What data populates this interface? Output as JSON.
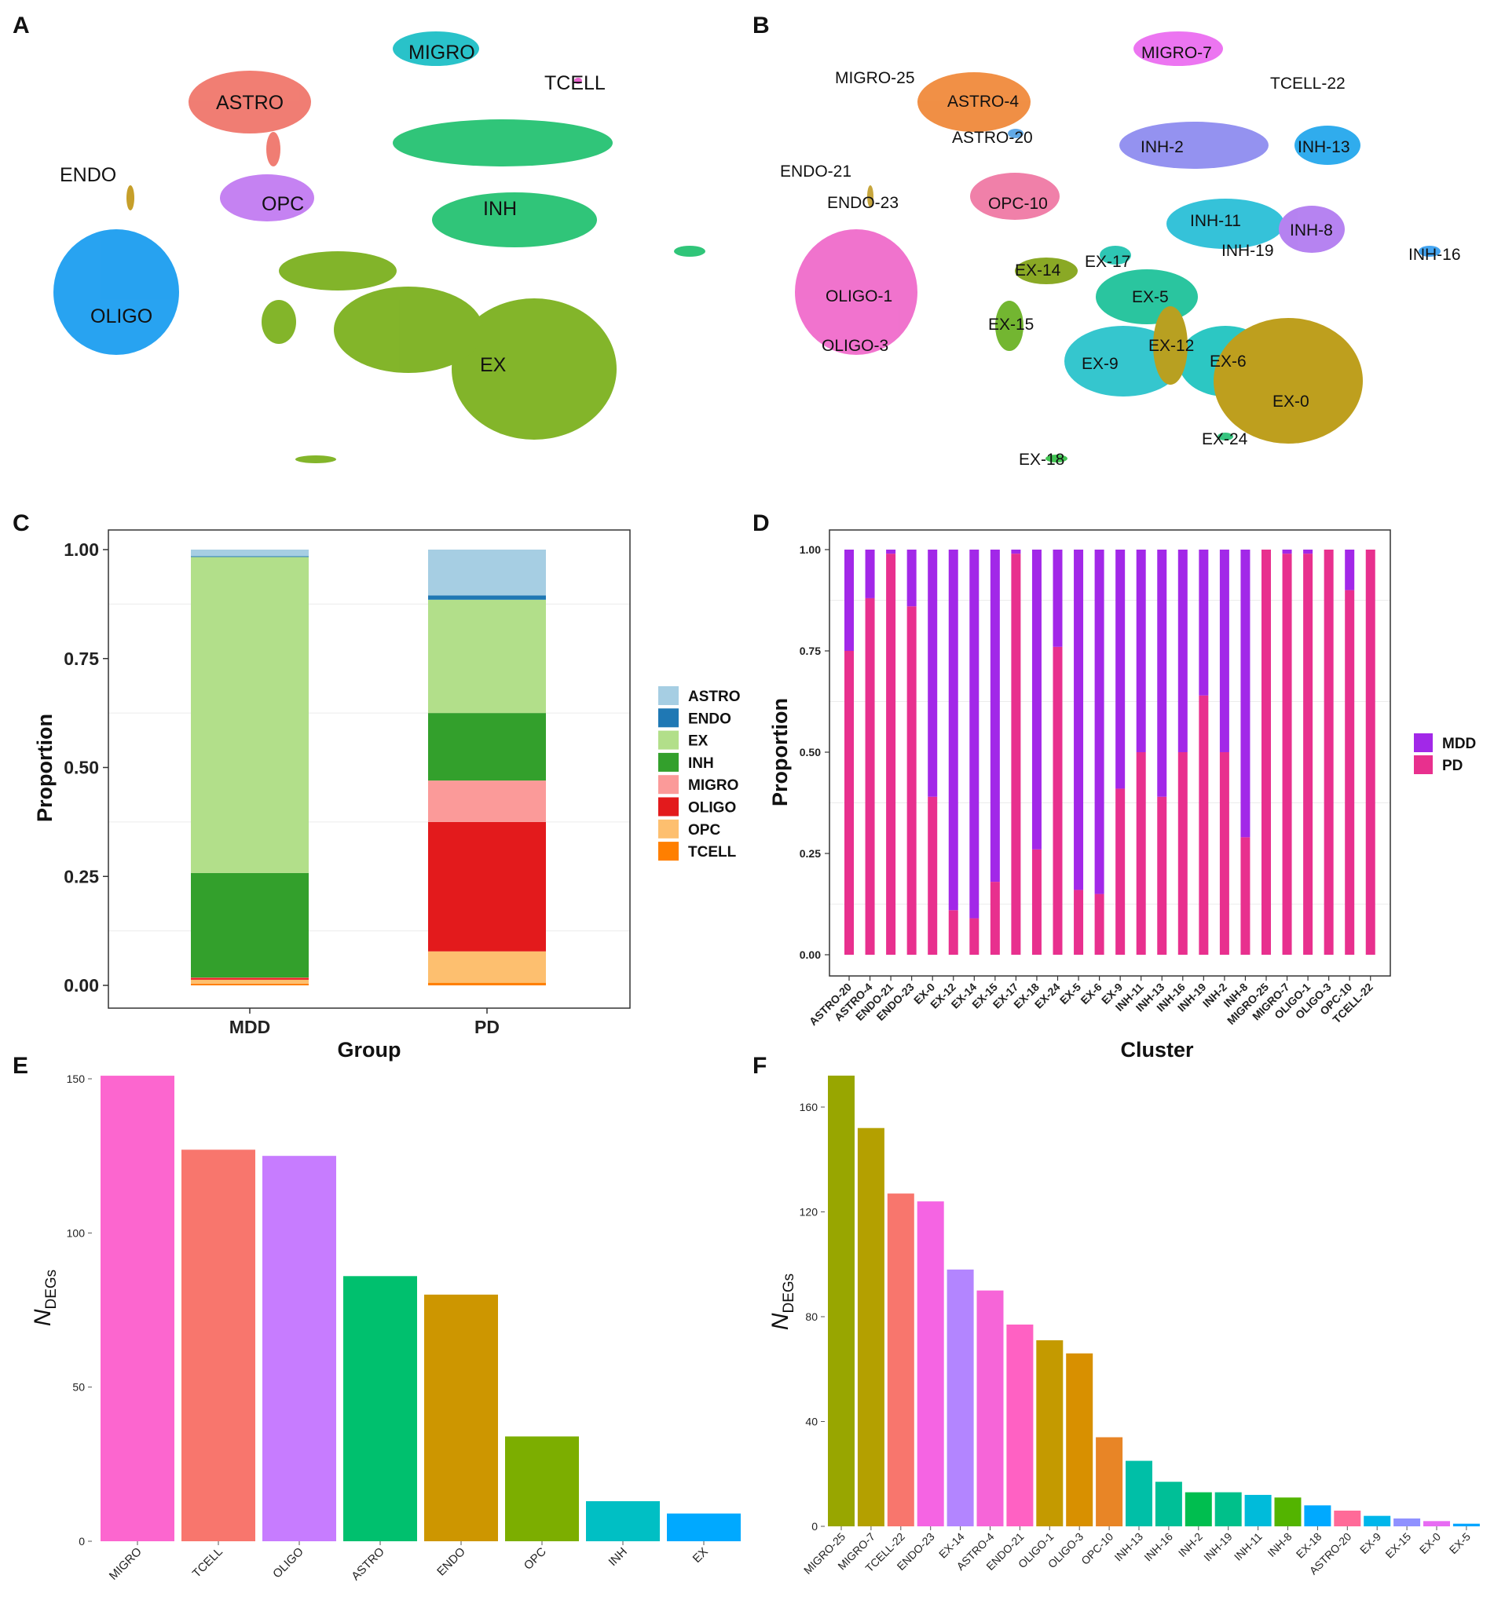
{
  "umap_a": {
    "panel_label": "A",
    "labels": [
      "MIGRO",
      "TCELL",
      "ASTRO",
      "ENDO",
      "OPC",
      "INH",
      "OLIGO",
      "EX"
    ],
    "colors": {
      "MIGRO": "#1ebfc6",
      "TCELL": "#e65cc9",
      "ASTRO": "#f0776c",
      "ENDO": "#c49a1f",
      "OPC": "#c27cf2",
      "INH": "#25c272",
      "OLIGO": "#1c9ef0",
      "EX": "#7cb11f"
    }
  },
  "umap_b": {
    "panel_label": "B",
    "labels": [
      "MIGRO-7",
      "MIGRO-25",
      "TCELL-22",
      "ASTRO-4",
      "ASTRO-20",
      "INH-2",
      "INH-13",
      "ENDO-21",
      "ENDO-23",
      "OPC-10",
      "INH-11",
      "INH-8",
      "INH-19",
      "INH-16",
      "EX-14",
      "EX-17",
      "OLIGO-1",
      "EX-5",
      "EX-15",
      "OLIGO-3",
      "EX-12",
      "EX-6",
      "EX-9",
      "EX-0",
      "EX-24",
      "EX-18"
    ],
    "colors": {
      "MIGRO-7": "#eb6ef0",
      "MIGRO-25": "#b45ce8",
      "TCELL-22": "#f06aa8",
      "ASTRO-4": "#f08a3c",
      "ASTRO-20": "#5aa6e6",
      "INH-2": "#8f8df0",
      "INH-13": "#25a8ec",
      "ENDO-21": "#d9a23a",
      "ENDO-23": "#c4a133",
      "OPC-10": "#f07aa5",
      "INH-11": "#2bbfd8",
      "INH-8": "#b27cf0",
      "INH-19": "#29b7e8",
      "INH-16": "#3aa0f0",
      "EX-14": "#84a51a",
      "EX-17": "#23c4b0",
      "OLIGO-1": "#f06ccb",
      "EX-5": "#1fc29a",
      "EX-15": "#6cb327",
      "OLIGO-3": "#ee5fc0",
      "EX-12": "#b59b16",
      "EX-6": "#21c5c0",
      "EX-9": "#2bc3cc",
      "EX-0": "#bb9a12",
      "EX-24": "#2cc27a",
      "EX-18": "#39c24b"
    }
  },
  "chart_data": [
    {
      "panel_label": "C",
      "type": "bar",
      "stacked": true,
      "title": "",
      "xlabel": "Group",
      "ylabel": "Proportion",
      "categories": [
        "MDD",
        "PD"
      ],
      "ylim": [
        0,
        1
      ],
      "yticks": [
        "0.00",
        "0.25",
        "0.50",
        "0.75",
        "1.00"
      ],
      "series": [
        {
          "name": "ASTRO",
          "color": "#a6cee3",
          "values": [
            0.015,
            0.105
          ]
        },
        {
          "name": "ENDO",
          "color": "#1f78b4",
          "values": [
            0.002,
            0.01
          ]
        },
        {
          "name": "EX",
          "color": "#b2df8a",
          "values": [
            0.725,
            0.26
          ]
        },
        {
          "name": "INH",
          "color": "#33a02c",
          "values": [
            0.24,
            0.155
          ]
        },
        {
          "name": "MIGRO",
          "color": "#fb9a99",
          "values": [
            0.001,
            0.095
          ]
        },
        {
          "name": "OLIGO",
          "color": "#e31a1c",
          "values": [
            0.004,
            0.297
          ]
        },
        {
          "name": "OPC",
          "color": "#fdbf6f",
          "values": [
            0.009,
            0.072
          ]
        },
        {
          "name": "TCELL",
          "color": "#ff7f00",
          "values": [
            0.004,
            0.006
          ]
        }
      ],
      "legend_position": "right"
    },
    {
      "panel_label": "D",
      "type": "bar",
      "stacked": true,
      "title": "",
      "xlabel": "Cluster",
      "ylabel": "Proportion",
      "categories": [
        "ASTRO-20",
        "ASTRO-4",
        "ENDO-21",
        "ENDO-23",
        "EX-0",
        "EX-12",
        "EX-14",
        "EX-15",
        "EX-17",
        "EX-18",
        "EX-24",
        "EX-5",
        "EX-6",
        "EX-9",
        "INH-11",
        "INH-13",
        "INH-16",
        "INH-19",
        "INH-2",
        "INH-8",
        "MIGRO-25",
        "MIGRO-7",
        "OLIGO-1",
        "OLIGO-3",
        "OPC-10",
        "TCELL-22"
      ],
      "ylim": [
        0,
        1
      ],
      "yticks": [
        "0.00",
        "0.25",
        "0.50",
        "0.75",
        "1.00"
      ],
      "series": [
        {
          "name": "PD",
          "color": "#e8308e",
          "values": [
            0.75,
            0.88,
            0.99,
            0.86,
            0.39,
            0.11,
            0.09,
            0.18,
            0.99,
            0.26,
            0.76,
            0.16,
            0.15,
            0.41,
            0.5,
            0.39,
            0.5,
            0.64,
            0.5,
            0.29,
            1.0,
            0.99,
            0.99,
            1.0,
            0.9,
            1.0
          ]
        },
        {
          "name": "MDD",
          "color": "#a228e8",
          "values": [
            0.25,
            0.12,
            0.01,
            0.14,
            0.61,
            0.89,
            0.91,
            0.82,
            0.01,
            0.74,
            0.24,
            0.84,
            0.85,
            0.59,
            0.5,
            0.61,
            0.5,
            0.36,
            0.5,
            0.71,
            0.0,
            0.01,
            0.01,
            0.0,
            0.1,
            0.0
          ]
        }
      ],
      "legend_order": [
        "MDD",
        "PD"
      ],
      "legend_position": "right"
    },
    {
      "panel_label": "E",
      "type": "bar",
      "title": "",
      "xlabel": "",
      "ylabel": "N_DEGs",
      "ylabel_main": "N",
      "ylabel_sub": "DEGs",
      "categories": [
        "MIGRO",
        "TCELL",
        "OLIGO",
        "ASTRO",
        "ENDO",
        "OPC",
        "INH",
        "EX"
      ],
      "values": [
        151,
        127,
        125,
        86,
        80,
        34,
        13,
        9
      ],
      "colors": [
        "#fc66cf",
        "#f8766d",
        "#c77cff",
        "#00c06e",
        "#cd9600",
        "#7cae00",
        "#00bfc4",
        "#00a9ff"
      ],
      "ylim": [
        0,
        160
      ],
      "yticks": [
        0,
        50,
        100,
        150
      ]
    },
    {
      "panel_label": "F",
      "type": "bar",
      "title": "",
      "xlabel": "",
      "ylabel": "N_DEGs",
      "ylabel_main": "N",
      "ylabel_sub": "DEGs",
      "categories": [
        "MIGRO-25",
        "MIGRO-7",
        "TCELL-22",
        "ENDO-23",
        "EX-14",
        "ASTRO-4",
        "ENDO-21",
        "OLIGO-1",
        "OLIGO-3",
        "OPC-10",
        "INH-13",
        "INH-16",
        "INH-2",
        "INH-19",
        "INH-11",
        "INH-8",
        "EX-18",
        "ASTRO-20",
        "EX-9",
        "EX-15",
        "EX-0",
        "EX-5"
      ],
      "values": [
        172,
        152,
        127,
        124,
        98,
        90,
        77,
        71,
        66,
        34,
        25,
        17,
        13,
        13,
        12,
        11,
        8,
        6,
        4,
        3,
        2,
        1
      ],
      "colors": [
        "#98a600",
        "#b4a000",
        "#f8766d",
        "#f564e3",
        "#b385ff",
        "#f665d8",
        "#ff61c3",
        "#c49a00",
        "#d89000",
        "#e88526",
        "#00bfa7",
        "#00bf97",
        "#00be4f",
        "#00c08a",
        "#00bbda",
        "#53b400",
        "#00a9ff",
        "#ff6a98",
        "#00b6eb",
        "#8f91ff",
        "#e76bf3",
        "#00a5ff"
      ],
      "ylim": [
        0,
        180
      ],
      "yticks": [
        0,
        40,
        80,
        120,
        160
      ]
    }
  ]
}
